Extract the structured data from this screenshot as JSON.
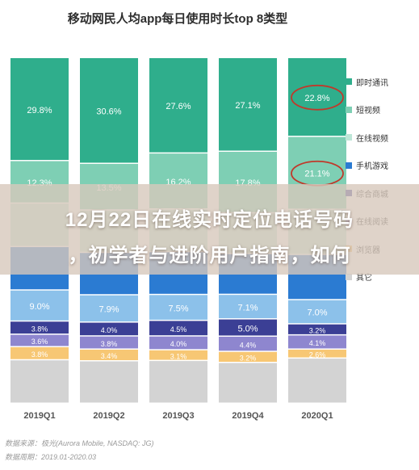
{
  "chart_data": {
    "type": "bar",
    "stacked": true,
    "percent_stacked": true,
    "title": "移动网民人均app每日使用时长top 8类型",
    "categories": [
      "2019Q1",
      "2019Q2",
      "2019Q3",
      "2019Q4",
      "2020Q1"
    ],
    "legend_position": "right",
    "series": [
      {
        "name": "即时通讯",
        "color": "#2fae8c",
        "values": [
          29.8,
          30.6,
          27.6,
          27.1,
          22.8
        ]
      },
      {
        "name": "短视频",
        "color": "#7ecfb4",
        "values": [
          12.3,
          13.5,
          16.2,
          17.8,
          21.1
        ]
      },
      {
        "name": "在线视频",
        "color": "#bde6d7",
        "values": [
          null,
          null,
          null,
          null,
          null
        ]
      },
      {
        "name": "手机游戏",
        "color": "#2b7bd2",
        "values": [
          null,
          null,
          null,
          null,
          null
        ]
      },
      {
        "name": "",
        "color": "#8cc1ea",
        "values": [
          9.0,
          7.9,
          7.5,
          7.1,
          7.0
        ]
      },
      {
        "name": "综合商城",
        "color": "#3b3f95",
        "values": [
          3.8,
          4.0,
          4.5,
          5.0,
          3.2
        ]
      },
      {
        "name": "在线阅读",
        "color": "#8e86cf",
        "values": [
          3.6,
          3.8,
          4.0,
          4.4,
          4.1
        ]
      },
      {
        "name": "浏览器",
        "color": "#f7c774",
        "values": [
          3.8,
          3.4,
          3.1,
          3.2,
          2.6
        ]
      },
      {
        "name": "其它",
        "color": "#d3d3d3",
        "values": [
          null,
          null,
          null,
          null,
          null
        ]
      }
    ],
    "highlighted": [
      {
        "category": "2020Q1",
        "series": "即时通讯",
        "value": 22.8
      },
      {
        "category": "2020Q1",
        "series": "短视频",
        "value": 21.1
      }
    ],
    "value_suffix": "%"
  },
  "overlay": {
    "line1": "12月22日在线实时定位电话号码",
    "line2": "，初学者与进阶用户指南，如何"
  },
  "source_note": "数据来源：极光(Aurora Mobile, NASDAQ: JG)",
  "date_note": "数据周期：2019.01-2020.03"
}
